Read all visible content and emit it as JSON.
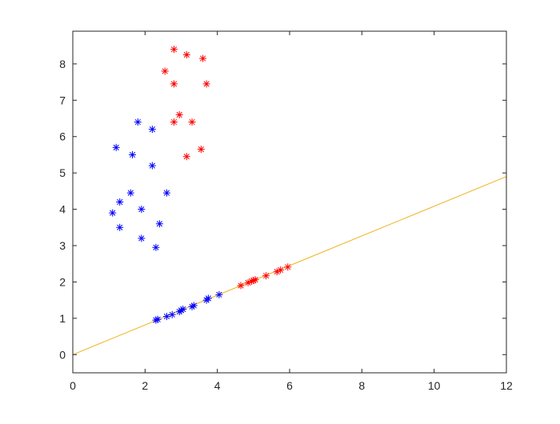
{
  "chart_data": {
    "type": "scatter",
    "title": "",
    "xlabel": "",
    "ylabel": "",
    "xlim": [
      0,
      12
    ],
    "ylim": [
      -0.5,
      8.9
    ],
    "xticks": [
      0,
      2,
      4,
      6,
      8,
      10,
      12
    ],
    "yticks": [
      0,
      1,
      2,
      3,
      4,
      5,
      6,
      7,
      8
    ],
    "grid": false,
    "legend": "none",
    "marker": "*",
    "series": [
      {
        "color": "#0000ff",
        "points": [
          [
            1.8,
            6.4
          ],
          [
            2.2,
            6.2
          ],
          [
            1.2,
            5.7
          ],
          [
            1.65,
            5.5
          ],
          [
            2.2,
            5.2
          ],
          [
            1.6,
            4.45
          ],
          [
            2.6,
            4.45
          ],
          [
            1.3,
            4.2
          ],
          [
            1.1,
            3.9
          ],
          [
            1.9,
            4.0
          ],
          [
            2.4,
            3.6
          ],
          [
            1.3,
            3.5
          ],
          [
            1.9,
            3.2
          ],
          [
            2.3,
            2.95
          ]
        ]
      },
      {
        "color": "#ff0000",
        "points": [
          [
            2.8,
            8.4
          ],
          [
            3.15,
            8.25
          ],
          [
            3.6,
            8.15
          ],
          [
            2.55,
            7.8
          ],
          [
            2.8,
            7.45
          ],
          [
            3.7,
            7.45
          ],
          [
            2.95,
            6.6
          ],
          [
            2.8,
            6.4
          ],
          [
            3.3,
            6.4
          ],
          [
            3.55,
            5.65
          ],
          [
            3.15,
            5.45
          ]
        ]
      },
      {
        "color": "#0000ff",
        "points": [
          [
            2.3,
            0.95
          ],
          [
            2.35,
            0.97
          ],
          [
            2.6,
            1.05
          ],
          [
            2.75,
            1.1
          ],
          [
            2.95,
            1.18
          ],
          [
            3.0,
            1.22
          ],
          [
            3.05,
            1.25
          ],
          [
            3.3,
            1.32
          ],
          [
            3.35,
            1.35
          ],
          [
            3.7,
            1.5
          ],
          [
            3.75,
            1.55
          ],
          [
            4.05,
            1.65
          ]
        ]
      },
      {
        "color": "#ff0000",
        "points": [
          [
            4.65,
            1.9
          ],
          [
            4.85,
            1.98
          ],
          [
            4.95,
            2.02
          ],
          [
            5.0,
            2.04
          ],
          [
            5.05,
            2.06
          ],
          [
            5.35,
            2.17
          ],
          [
            5.65,
            2.28
          ],
          [
            5.75,
            2.33
          ],
          [
            5.95,
            2.41
          ]
        ]
      }
    ],
    "lines": [
      {
        "color": "#edb120",
        "x": [
          0,
          12
        ],
        "y": [
          0,
          4.9
        ]
      }
    ]
  }
}
